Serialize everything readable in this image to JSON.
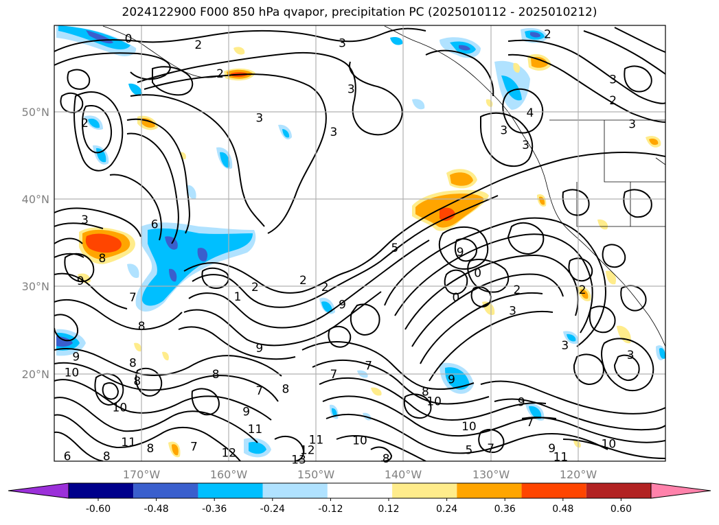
{
  "title": "2024122900 F000 850 hPa qvapor, precipitation PC (2025010112 - 2025010212)",
  "lon_ticks": [
    "170°W",
    "160°W",
    "150°W",
    "140°W",
    "130°W",
    "120°W"
  ],
  "lat_ticks": [
    "50°N",
    "40°N",
    "30°N",
    "20°N"
  ],
  "colorbar": {
    "labels": [
      "-0.60",
      "-0.48",
      "-0.36",
      "-0.24",
      "-0.12",
      "0.12",
      "0.24",
      "0.36",
      "0.48",
      "0.60"
    ],
    "colors": [
      "#9b30d9",
      "#00008b",
      "#3a5fcd",
      "#00bfff",
      "#b0e2ff",
      "#ffffff",
      "#ffec8b",
      "#ffa500",
      "#ff4500",
      "#b22222",
      "#ff82ab"
    ],
    "extend": "both"
  },
  "contour_labels": [
    {
      "text": "0",
      "lon": -171.5,
      "lat": 58.5
    },
    {
      "text": "2",
      "lon": -163.5,
      "lat": 57.8
    },
    {
      "text": "2",
      "lon": -161.0,
      "lat": 54.5
    },
    {
      "text": "3",
      "lon": -156.5,
      "lat": 49.4
    },
    {
      "text": "3",
      "lon": -147.0,
      "lat": 58.0
    },
    {
      "text": "3",
      "lon": -146.0,
      "lat": 52.7
    },
    {
      "text": "3",
      "lon": -148.0,
      "lat": 47.8
    },
    {
      "text": "2",
      "lon": -123.5,
      "lat": 59.0
    },
    {
      "text": "3",
      "lon": -116.0,
      "lat": 53.8
    },
    {
      "text": "2",
      "lon": -116.0,
      "lat": 51.4
    },
    {
      "text": "4",
      "lon": -125.5,
      "lat": 50.0
    },
    {
      "text": "3",
      "lon": -128.5,
      "lat": 48.0
    },
    {
      "text": "3",
      "lon": -126.0,
      "lat": 46.3
    },
    {
      "text": "3",
      "lon": -113.8,
      "lat": 48.7
    },
    {
      "text": "2",
      "lon": -176.5,
      "lat": 48.8
    },
    {
      "text": "6",
      "lon": -168.5,
      "lat": 37.2
    },
    {
      "text": "3",
      "lon": -176.5,
      "lat": 37.7
    },
    {
      "text": "8",
      "lon": -174.5,
      "lat": 33.3
    },
    {
      "text": "9",
      "lon": -177.0,
      "lat": 30.7
    },
    {
      "text": "7",
      "lon": -171.0,
      "lat": 28.8
    },
    {
      "text": "1",
      "lon": -159.0,
      "lat": 28.9
    },
    {
      "text": "2",
      "lon": -157.0,
      "lat": 30.0
    },
    {
      "text": "2",
      "lon": -151.5,
      "lat": 30.8
    },
    {
      "text": "2",
      "lon": -149.0,
      "lat": 30.0
    },
    {
      "text": "5",
      "lon": -141.0,
      "lat": 34.5
    },
    {
      "text": "9",
      "lon": -147.0,
      "lat": 28.0
    },
    {
      "text": "9",
      "lon": -133.5,
      "lat": 34.0
    },
    {
      "text": "0",
      "lon": -131.5,
      "lat": 31.6
    },
    {
      "text": "0",
      "lon": -134.0,
      "lat": 28.8
    },
    {
      "text": "2",
      "lon": -127.0,
      "lat": 29.7
    },
    {
      "text": "3",
      "lon": -127.5,
      "lat": 27.3
    },
    {
      "text": "2",
      "lon": -119.5,
      "lat": 29.7
    },
    {
      "text": "3",
      "lon": -121.5,
      "lat": 23.3
    },
    {
      "text": "3",
      "lon": -114.0,
      "lat": 22.2
    },
    {
      "text": "8",
      "lon": -170.0,
      "lat": 25.5
    },
    {
      "text": "9",
      "lon": -177.5,
      "lat": 22.0
    },
    {
      "text": "8",
      "lon": -171.0,
      "lat": 21.3
    },
    {
      "text": "9",
      "lon": -156.5,
      "lat": 23.0
    },
    {
      "text": "10",
      "lon": -178.0,
      "lat": 20.2
    },
    {
      "text": "8",
      "lon": -170.5,
      "lat": 19.2
    },
    {
      "text": "8",
      "lon": -161.5,
      "lat": 20.0
    },
    {
      "text": "7",
      "lon": -156.5,
      "lat": 18.1
    },
    {
      "text": "8",
      "lon": -153.5,
      "lat": 18.3
    },
    {
      "text": "7",
      "lon": -148.0,
      "lat": 20.0
    },
    {
      "text": "7",
      "lon": -144.0,
      "lat": 21.0
    },
    {
      "text": "9",
      "lon": -134.5,
      "lat": 19.4
    },
    {
      "text": "8",
      "lon": -137.5,
      "lat": 18.0
    },
    {
      "text": "10",
      "lon": -136.5,
      "lat": 16.9
    },
    {
      "text": "9",
      "lon": -126.5,
      "lat": 16.8
    },
    {
      "text": "10",
      "lon": -172.5,
      "lat": 16.2
    },
    {
      "text": "9",
      "lon": -158.0,
      "lat": 15.7
    },
    {
      "text": "11",
      "lon": -157.0,
      "lat": 13.7
    },
    {
      "text": "10",
      "lon": -132.5,
      "lat": 14.0
    },
    {
      "text": "7",
      "lon": -125.5,
      "lat": 14.5
    },
    {
      "text": "11",
      "lon": -171.5,
      "lat": 12.2
    },
    {
      "text": "8",
      "lon": -169.0,
      "lat": 11.5
    },
    {
      "text": "7",
      "lon": -164.0,
      "lat": 11.7
    },
    {
      "text": "12",
      "lon": -160.0,
      "lat": 11.0
    },
    {
      "text": "11",
      "lon": -150.0,
      "lat": 12.5
    },
    {
      "text": "12",
      "lon": -151.0,
      "lat": 11.3
    },
    {
      "text": "13",
      "lon": -152.0,
      "lat": 10.2
    },
    {
      "text": "10",
      "lon": -145.0,
      "lat": 12.4
    },
    {
      "text": "8",
      "lon": -142.0,
      "lat": 10.3
    },
    {
      "text": "5",
      "lon": -132.5,
      "lat": 11.3
    },
    {
      "text": "7",
      "lon": -130.0,
      "lat": 11.5
    },
    {
      "text": "9",
      "lon": -123.0,
      "lat": 11.5
    },
    {
      "text": "11",
      "lon": -122.0,
      "lat": 10.5
    },
    {
      "text": "10",
      "lon": -116.5,
      "lat": 12.0
    },
    {
      "text": "6",
      "lon": -178.5,
      "lat": 10.6
    },
    {
      "text": "8",
      "lon": -174.0,
      "lat": 10.6
    }
  ]
}
